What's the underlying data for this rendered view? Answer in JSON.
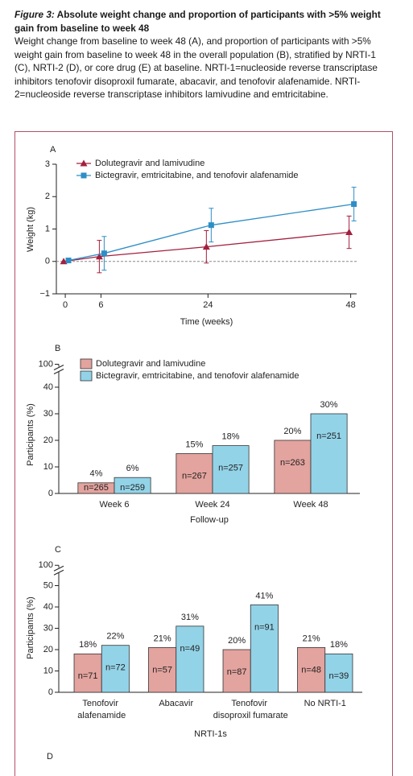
{
  "caption": {
    "label": "Figure 3:",
    "title": "Absolute weight change and proportion of participants with >5% weight gain from baseline to week 48",
    "text": "Weight change from baseline to week 48 (A), and proportion of participants with >5% weight gain from baseline to week 48 in the overall population (B), stratified by NRTI-1 (C), NRTI-2 (D), or core drug (E) at baseline. NRTI-1=nucleoside reverse transcriptase inhibitors tenofovir disoproxil fumarate, abacavir, and tenofovir alafenamide. NRTI-2=nucleoside reverse transcriptase inhibitors lamivudine and emtricitabine."
  },
  "chart_data": [
    {
      "type": "line",
      "panel": "A",
      "xlabel": "Time (weeks)",
      "ylabel": "Weight (kg)",
      "x": [
        0,
        6,
        24,
        48
      ],
      "xlim": [
        -1.5,
        49
      ],
      "xticks": [
        0,
        6,
        24,
        48
      ],
      "ylim": [
        -1,
        3
      ],
      "yticks": [
        {
          "value": -1,
          "label": "−1"
        },
        0,
        1,
        2,
        3
      ],
      "legend": "upper left",
      "series": [
        {
          "name": "Dolutegravir and lamivudine",
          "color": "#a3203f",
          "marker": "triangle",
          "values": [
            0,
            0.15,
            0.45,
            0.9
          ],
          "errors": [
            null,
            0.5,
            0.5,
            0.5
          ]
        },
        {
          "name": "Bictegravir, emtricitabine, and tenofovir alafenamide",
          "color": "#2e8ec6",
          "marker": "square",
          "values": [
            0.03,
            0.25,
            1.12,
            1.77
          ],
          "errors": [
            null,
            0.52,
            0.52,
            0.52
          ]
        }
      ]
    },
    {
      "type": "bar",
      "panel": "B",
      "xlabel": "Follow-up",
      "ylabel": "Participants (%)",
      "categories": [
        "Week 6",
        "Week 24",
        "Week 48"
      ],
      "ylim": [
        0,
        100
      ],
      "axis_break": [
        45,
        100
      ],
      "yticks": [
        0,
        10,
        20,
        30,
        40,
        100
      ],
      "legend": "upper left",
      "series": [
        {
          "name": "Dolutegravir and lamivudine",
          "color": "#e3a39e",
          "values": [
            4,
            15,
            20
          ],
          "value_labels": [
            "4%",
            "15%",
            "20%"
          ],
          "sample_sizes": [
            "n=265",
            "n=267",
            "n=263"
          ]
        },
        {
          "name": "Bictegravir, emtricitabine, and tenofovir alafenamide",
          "color": "#93d3e8",
          "values": [
            6,
            18,
            30
          ],
          "value_labels": [
            "6%",
            "18%",
            "30%"
          ],
          "sample_sizes": [
            "n=259",
            "n=257",
            "n=251"
          ]
        }
      ]
    },
    {
      "type": "bar",
      "panel": "C",
      "xlabel": "NRTI-1s",
      "ylabel": "Participants (%)",
      "categories": [
        "Tenofovir alafenamide",
        "Abacavir",
        "Tenofovir disoproxil fumarate",
        "No NRTI-1"
      ],
      "ylim": [
        0,
        100
      ],
      "axis_break": [
        55,
        100
      ],
      "yticks": [
        0,
        10,
        20,
        30,
        40,
        50,
        100
      ],
      "series": [
        {
          "color": "#e3a39e",
          "values": [
            18,
            21,
            20,
            21
          ],
          "value_labels": [
            "18%",
            "21%",
            "20%",
            "21%"
          ],
          "sample_sizes": [
            "n=71",
            "n=57",
            "n=87",
            "n=48"
          ]
        },
        {
          "color": "#93d3e8",
          "values": [
            22,
            31,
            41,
            18
          ],
          "value_labels": [
            "22%",
            "31%",
            "41%",
            "18%"
          ],
          "sample_sizes": [
            "n=72",
            "n=49",
            "n=91",
            "n=39"
          ]
        }
      ]
    }
  ],
  "continuation": {
    "panel": "D"
  }
}
